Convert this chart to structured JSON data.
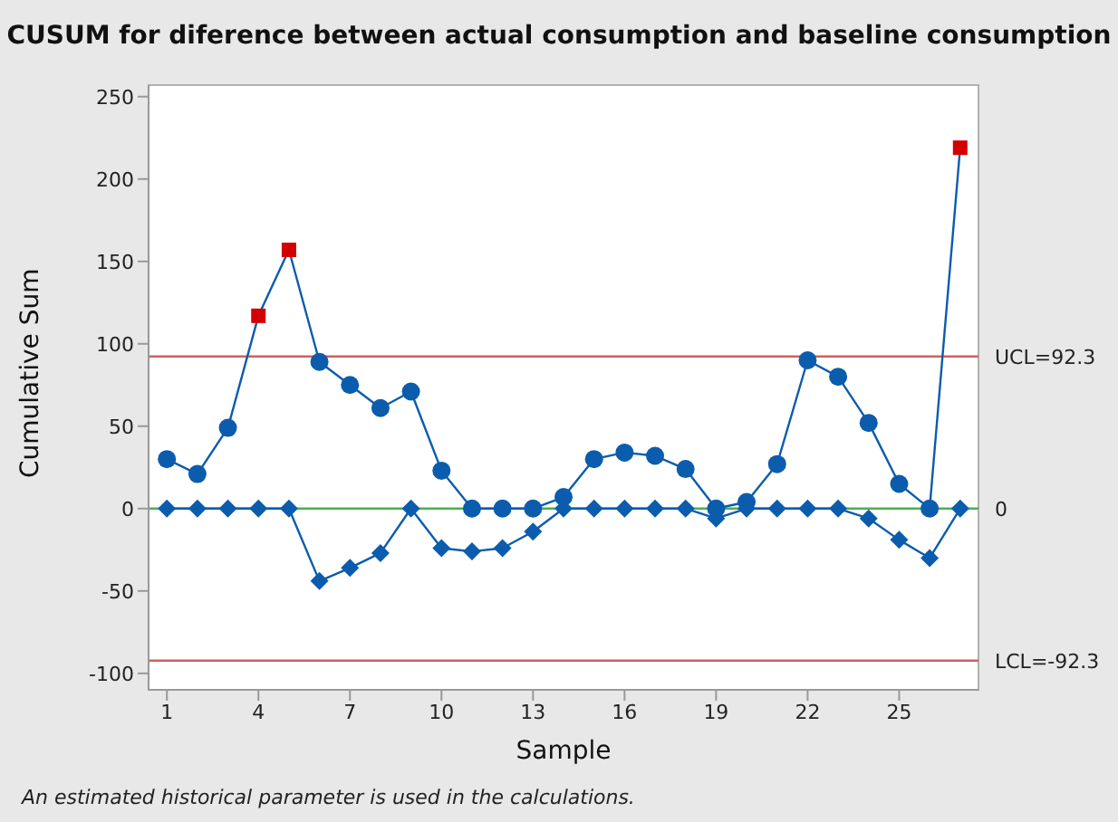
{
  "chart_data": {
    "type": "line",
    "title": "CUSUM for diference between actual consumption and baseline consumption",
    "xlabel": "Sample",
    "ylabel": "Cumulative Sum",
    "x": [
      1,
      2,
      3,
      4,
      5,
      6,
      7,
      8,
      9,
      10,
      11,
      12,
      13,
      14,
      15,
      16,
      17,
      18,
      19,
      20,
      21,
      22,
      23,
      24,
      25,
      26,
      27
    ],
    "series": [
      {
        "color": "#0b5cad",
        "marker": "circle",
        "values": [
          30,
          21,
          49,
          117,
          157,
          89,
          75,
          61,
          71,
          23,
          0,
          0,
          0,
          7,
          30,
          34,
          32,
          24,
          0,
          4,
          27,
          90,
          80,
          52,
          15,
          0,
          219
        ]
      },
      {
        "color": "#0b5cad",
        "marker": "diamond",
        "values": [
          0,
          0,
          0,
          0,
          0,
          -44,
          -36,
          -27,
          0,
          -24,
          -26,
          -24,
          -14,
          0,
          0,
          0,
          0,
          0,
          -6,
          0,
          0,
          0,
          0,
          -6,
          -19,
          -30,
          0
        ]
      },
      {
        "type": "scatter",
        "color": "#d40000",
        "marker": "square",
        "x": [
          4,
          5,
          27
        ],
        "values": [
          117,
          157,
          219
        ]
      }
    ],
    "xlim": [
      0.4,
      27.6
    ],
    "xticks": [
      1,
      4,
      7,
      10,
      13,
      16,
      19,
      22,
      25
    ],
    "ylim": [
      -110,
      257
    ],
    "yticks": [
      -100,
      -50,
      0,
      50,
      100,
      150,
      200,
      250
    ],
    "ref_lines": [
      {
        "axis": "y",
        "value": 92.3,
        "label": "UCL=92.3",
        "color": "#d06060"
      },
      {
        "axis": "y",
        "value": 0,
        "label": "0",
        "color": "#4caf50"
      },
      {
        "axis": "y",
        "value": -92.3,
        "label": "LCL=-92.3",
        "color": "#d06060"
      }
    ],
    "annotations": [
      "An estimated historical parameter is used in the calculations."
    ],
    "grid": false,
    "legend": false
  }
}
